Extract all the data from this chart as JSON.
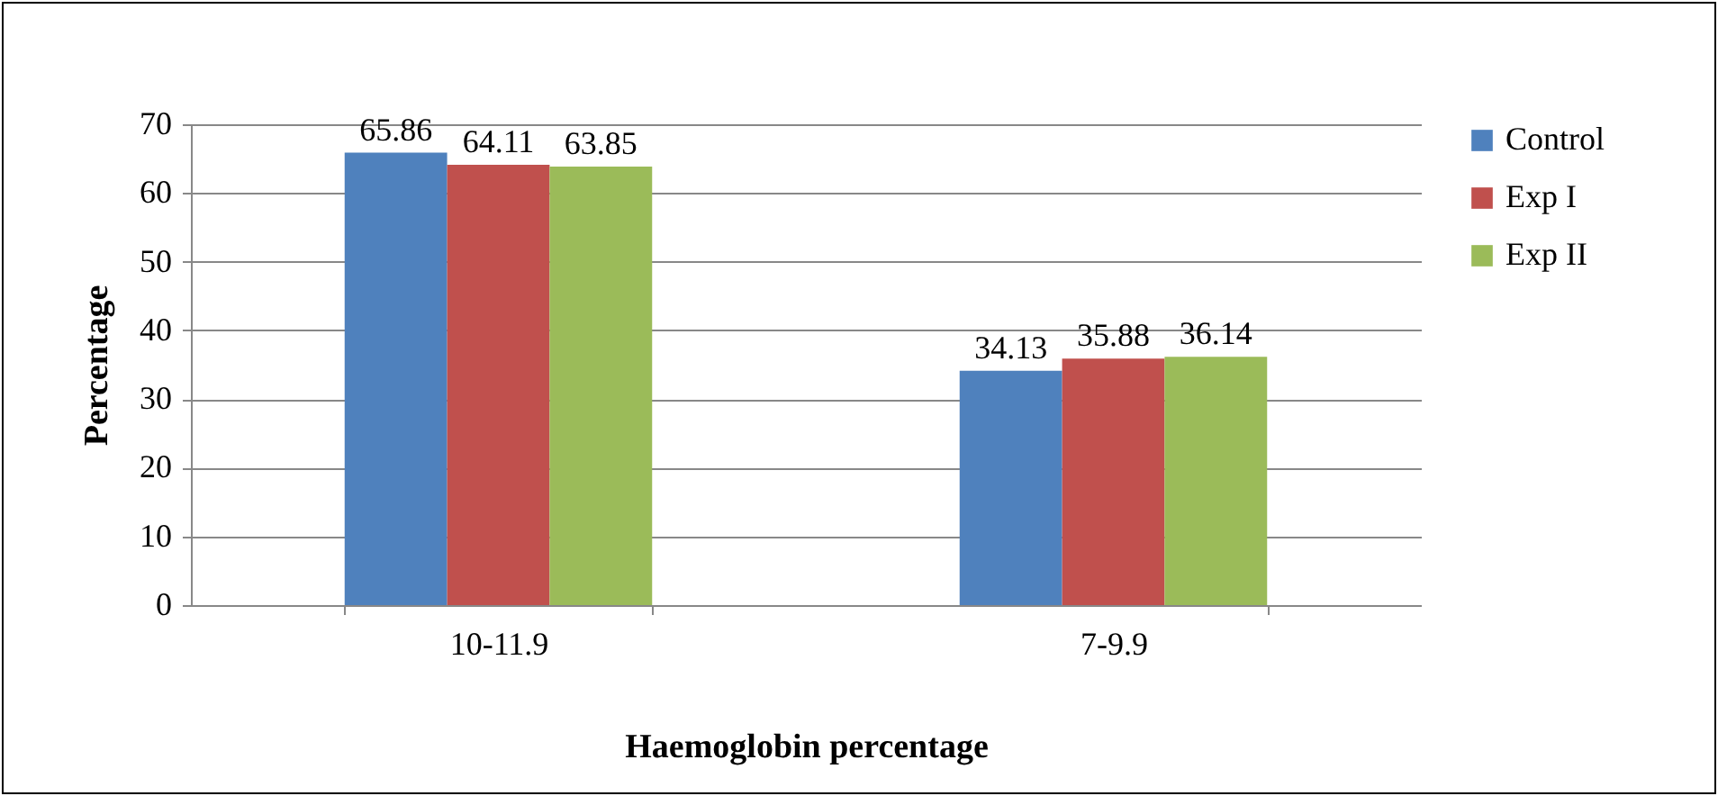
{
  "chart_data": {
    "type": "bar",
    "xlabel": "Haemoglobin percentage",
    "ylabel": "Percentage",
    "categories": [
      "10-11.9",
      "7-9.9"
    ],
    "series": [
      {
        "name": "Control",
        "color": "#4f81bd",
        "values": [
          65.86,
          34.13
        ]
      },
      {
        "name": "Exp I",
        "color": "#c0504d",
        "values": [
          64.11,
          35.88
        ]
      },
      {
        "name": "Exp II",
        "color": "#9bbb59",
        "values": [
          63.85,
          36.14
        ]
      }
    ],
    "ylim": [
      0,
      70
    ],
    "yticks": [
      0,
      10,
      20,
      30,
      40,
      50,
      60,
      70
    ],
    "grid": "y",
    "legend": "right",
    "data_labels": true
  }
}
